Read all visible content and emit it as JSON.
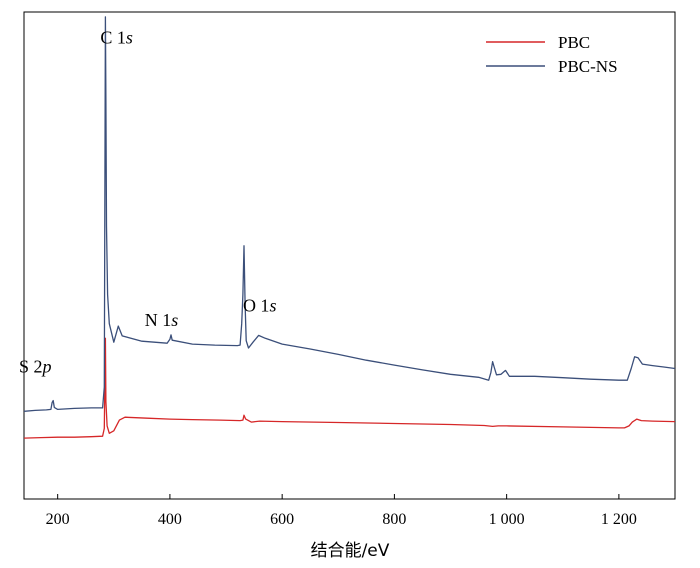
{
  "chart_data": {
    "type": "line",
    "xlabel": "结合能/eV",
    "ylabel": "",
    "xlim": [
      140,
      1300
    ],
    "ylim": [
      0,
      1000
    ],
    "x_ticks": [
      200,
      400,
      600,
      800,
      1000,
      1200
    ],
    "x_tick_labels": [
      "200",
      "400",
      "600",
      "800",
      "1 000",
      "1 200"
    ],
    "y_ticks_shown": false,
    "grid": false,
    "legend_position": "top-right",
    "annotations": [
      {
        "id": "s2p",
        "prefix": "S 2",
        "italic": "p",
        "x": 160,
        "y": 260
      },
      {
        "id": "c1s",
        "prefix": "C 1",
        "italic": "s",
        "x": 305,
        "y": 935
      },
      {
        "id": "n1s",
        "prefix": "N 1",
        "italic": "s",
        "x": 385,
        "y": 355
      },
      {
        "id": "o1s",
        "prefix": "O 1",
        "italic": "s",
        "x": 560,
        "y": 385
      }
    ],
    "series": [
      {
        "name": "PBC",
        "color": "#d62728",
        "points": [
          [
            140,
            125
          ],
          [
            170,
            126
          ],
          [
            200,
            127
          ],
          [
            230,
            127
          ],
          [
            260,
            128
          ],
          [
            280,
            129
          ],
          [
            283,
            145
          ],
          [
            285,
            330
          ],
          [
            286,
            200
          ],
          [
            288,
            150
          ],
          [
            292,
            135
          ],
          [
            300,
            140
          ],
          [
            310,
            162
          ],
          [
            320,
            168
          ],
          [
            360,
            166
          ],
          [
            400,
            164
          ],
          [
            440,
            163
          ],
          [
            490,
            162
          ],
          [
            525,
            161
          ],
          [
            530,
            162
          ],
          [
            532,
            172
          ],
          [
            535,
            164
          ],
          [
            545,
            158
          ],
          [
            560,
            160
          ],
          [
            600,
            159
          ],
          [
            700,
            157
          ],
          [
            800,
            155
          ],
          [
            900,
            153
          ],
          [
            960,
            151
          ],
          [
            975,
            149
          ],
          [
            985,
            150
          ],
          [
            1000,
            150
          ],
          [
            1100,
            148
          ],
          [
            1200,
            146
          ],
          [
            1210,
            146
          ],
          [
            1218,
            150
          ],
          [
            1224,
            158
          ],
          [
            1232,
            164
          ],
          [
            1240,
            161
          ],
          [
            1260,
            160
          ],
          [
            1300,
            159
          ]
        ]
      },
      {
        "name": "PBC-NS",
        "color": "#3b4f7a",
        "points": [
          [
            140,
            180
          ],
          [
            160,
            182
          ],
          [
            180,
            183
          ],
          [
            188,
            184
          ],
          [
            190,
            198
          ],
          [
            192,
            202
          ],
          [
            194,
            188
          ],
          [
            200,
            184
          ],
          [
            230,
            186
          ],
          [
            260,
            187
          ],
          [
            280,
            187
          ],
          [
            283,
            230
          ],
          [
            285,
            990
          ],
          [
            286,
            820
          ],
          [
            287,
            560
          ],
          [
            289,
            420
          ],
          [
            292,
            360
          ],
          [
            300,
            322
          ],
          [
            308,
            355
          ],
          [
            315,
            335
          ],
          [
            350,
            324
          ],
          [
            395,
            320
          ],
          [
            400,
            328
          ],
          [
            402,
            337
          ],
          [
            404,
            326
          ],
          [
            440,
            318
          ],
          [
            480,
            316
          ],
          [
            520,
            315
          ],
          [
            525,
            316
          ],
          [
            528,
            360
          ],
          [
            530,
            420
          ],
          [
            532,
            520
          ],
          [
            534,
            400
          ],
          [
            536,
            325
          ],
          [
            540,
            310
          ],
          [
            548,
            322
          ],
          [
            558,
            336
          ],
          [
            570,
            330
          ],
          [
            600,
            318
          ],
          [
            650,
            308
          ],
          [
            700,
            297
          ],
          [
            750,
            285
          ],
          [
            800,
            275
          ],
          [
            850,
            265
          ],
          [
            900,
            256
          ],
          [
            950,
            250
          ],
          [
            968,
            244
          ],
          [
            972,
            260
          ],
          [
            975,
            282
          ],
          [
            978,
            270
          ],
          [
            982,
            255
          ],
          [
            990,
            256
          ],
          [
            998,
            264
          ],
          [
            1005,
            252
          ],
          [
            1050,
            252
          ],
          [
            1100,
            249
          ],
          [
            1150,
            246
          ],
          [
            1200,
            244
          ],
          [
            1215,
            244
          ],
          [
            1222,
            268
          ],
          [
            1228,
            292
          ],
          [
            1234,
            290
          ],
          [
            1242,
            277
          ],
          [
            1260,
            274
          ],
          [
            1280,
            271
          ],
          [
            1300,
            268
          ]
        ]
      }
    ]
  }
}
